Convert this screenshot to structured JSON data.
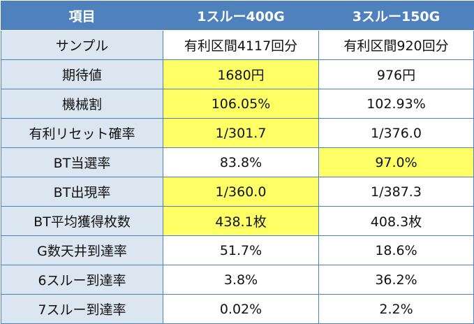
{
  "colors": {
    "header_bg": "#4f81bd",
    "header_text": "#ffffff",
    "label_bg": "#dce6f1",
    "highlight": "#ffff66",
    "border": "#4f81bd"
  },
  "table": {
    "headers": [
      "項目",
      "1スルー400G",
      "3スルー150G"
    ],
    "rows": [
      {
        "label": "サンプル",
        "v1": "有利区間4117回分",
        "v2": "有利区間920回分",
        "hl1": false,
        "hl2": false
      },
      {
        "label": "期待値",
        "v1": "1680円",
        "v2": "976円",
        "hl1": true,
        "hl2": false
      },
      {
        "label": "機械割",
        "v1": "106.05%",
        "v2": "102.93%",
        "hl1": true,
        "hl2": false
      },
      {
        "label": "有利リセット確率",
        "v1": "1/301.7",
        "v2": "1/376.0",
        "hl1": true,
        "hl2": false
      },
      {
        "label": "BT当選率",
        "v1": "83.8%",
        "v2": "97.0%",
        "hl1": false,
        "hl2": true
      },
      {
        "label": "BT出現率",
        "v1": "1/360.0",
        "v2": "1/387.3",
        "hl1": true,
        "hl2": false
      },
      {
        "label": "BT平均獲得枚数",
        "v1": "438.1枚",
        "v2": "408.3枚",
        "hl1": true,
        "hl2": false
      },
      {
        "label": "G数天井到達率",
        "v1": "51.7%",
        "v2": "18.6%",
        "hl1": false,
        "hl2": false
      },
      {
        "label": "6スルー到達率",
        "v1": "3.8%",
        "v2": "36.2%",
        "hl1": false,
        "hl2": false
      },
      {
        "label": "7スルー到達率",
        "v1": "0.02%",
        "v2": "2.2%",
        "hl1": false,
        "hl2": false
      }
    ]
  }
}
